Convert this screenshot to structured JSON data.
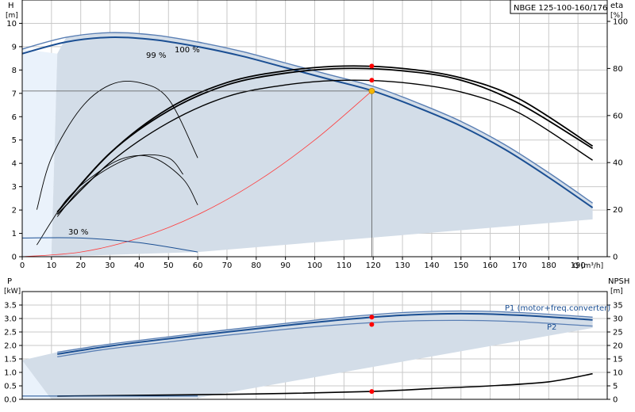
{
  "title": "NBGE 125-100-160/176",
  "colors": {
    "envelope": "#d3dde8",
    "envelope_light": "#eaf2fb",
    "curve_dark": "#1b4f93",
    "curve_light": "#5a7fb4",
    "system_curve": "#ff3b3b",
    "eta": "#000000",
    "duty_point": "#ff0000",
    "duty_point_top": "#f5b800",
    "grid": "#c9c9c9"
  },
  "chart_data": [
    {
      "id": "top",
      "type": "line",
      "xlabel": "Q [m³/h]",
      "ylabel_left": "H",
      "ylabel_left_unit": "[m]",
      "ylabel_right": "eta",
      "ylabel_right_unit": "[%]",
      "xlim": [
        0,
        200
      ],
      "ylim_left": [
        0,
        11
      ],
      "ylim_right": [
        0,
        100
      ],
      "x_ticks": [
        0,
        10,
        20,
        30,
        40,
        50,
        60,
        70,
        80,
        90,
        100,
        110,
        120,
        130,
        140,
        150,
        160,
        170,
        180,
        190
      ],
      "y_ticks_left": [
        0,
        1,
        2,
        3,
        4,
        5,
        6,
        7,
        8,
        9,
        10
      ],
      "y_ticks_right": [
        0,
        20,
        40,
        60,
        80,
        100
      ],
      "grid": true,
      "series": [
        {
          "name": "100 %",
          "axis": "left",
          "kind": "head",
          "x": [
            0,
            15,
            30,
            45,
            60,
            75,
            90,
            105,
            120,
            135,
            150,
            165,
            180,
            195
          ],
          "y": [
            8.9,
            9.4,
            9.6,
            9.5,
            9.2,
            8.8,
            8.3,
            7.8,
            7.3,
            6.6,
            5.8,
            4.8,
            3.6,
            2.3
          ]
        },
        {
          "name": "99 %",
          "axis": "left",
          "kind": "head",
          "x": [
            0,
            15,
            30,
            45,
            60,
            75,
            90,
            105,
            120,
            135,
            150,
            165,
            180,
            195
          ],
          "y": [
            8.7,
            9.2,
            9.4,
            9.3,
            9.0,
            8.6,
            8.1,
            7.6,
            7.1,
            6.4,
            5.6,
            4.6,
            3.4,
            2.1
          ]
        },
        {
          "name": "",
          "axis": "left",
          "kind": "system",
          "x": [
            0,
            20,
            40,
            60,
            80,
            100,
            119.5
          ],
          "y": [
            0,
            0.2,
            0.8,
            1.8,
            3.2,
            5.0,
            7.1
          ]
        },
        {
          "name": "",
          "axis": "right",
          "kind": "eta",
          "x": [
            12,
            30,
            50,
            70,
            90,
            110,
            130,
            150,
            170,
            195
          ],
          "y": [
            18,
            40,
            57,
            68,
            73,
            75,
            74,
            70,
            61,
            41
          ]
        },
        {
          "name": "",
          "axis": "right",
          "kind": "eta",
          "x": [
            12,
            30,
            50,
            70,
            90,
            110,
            130,
            150,
            170,
            195
          ],
          "y": [
            19,
            44,
            62,
            73,
            78,
            80,
            79,
            75,
            65,
            46
          ]
        },
        {
          "name": "",
          "axis": "right",
          "kind": "eta",
          "x": [
            12,
            30,
            50,
            70,
            90,
            110,
            130,
            150,
            170,
            195
          ],
          "y": [
            19,
            44,
            63,
            74,
            79,
            81,
            80,
            76,
            67,
            47
          ]
        },
        {
          "name": "",
          "axis": "right",
          "kind": "eta_thin",
          "x": [
            5,
            10,
            20,
            30,
            40,
            50,
            60
          ],
          "y": [
            20,
            42,
            63,
            73,
            74,
            67,
            42
          ]
        },
        {
          "name": "",
          "axis": "right",
          "kind": "eta_thin",
          "x": [
            5,
            15,
            25,
            35,
            45,
            55,
            60
          ],
          "y": [
            5,
            24,
            35,
            42,
            42,
            33,
            22
          ]
        },
        {
          "name": "",
          "axis": "right",
          "kind": "eta_thin",
          "x": [
            12,
            20,
            30,
            40,
            50,
            55
          ],
          "y": [
            17,
            29,
            38,
            43,
            42,
            35
          ]
        },
        {
          "name": "30 %",
          "axis": "left",
          "kind": "head_thin",
          "x": [
            0,
            20,
            40,
            60
          ],
          "y": [
            0.8,
            0.8,
            0.6,
            0.2
          ]
        }
      ],
      "envelope": {
        "x": [
          12,
          15,
          30,
          45,
          60,
          75,
          90,
          105,
          120,
          135,
          150,
          165,
          180,
          195,
          195,
          60,
          10
        ],
        "y": [
          8.7,
          9.4,
          9.6,
          9.5,
          9.2,
          8.8,
          8.3,
          7.8,
          7.3,
          6.6,
          5.8,
          4.8,
          3.6,
          2.3,
          1.6,
          0.2,
          0.0
        ]
      },
      "duty_point": {
        "Q": 119.5,
        "H": 7.1
      },
      "duty_markers_right": [
        81,
        75
      ],
      "labels": [
        "100 %",
        "99 %",
        "30 %"
      ]
    },
    {
      "id": "bottom",
      "type": "line",
      "ylabel_left": "P",
      "ylabel_left_unit": "[kW]",
      "ylabel_right": "NPSH",
      "ylabel_right_unit": "[m]",
      "xlim": [
        0,
        200
      ],
      "ylim_left": [
        0,
        4
      ],
      "ylim_right": [
        0,
        40
      ],
      "y_ticks_left": [
        0,
        0.5,
        1.0,
        1.5,
        2.0,
        2.5,
        3.0,
        3.5
      ],
      "y_ticks_right": [
        0,
        5,
        10,
        15,
        20,
        25,
        30,
        35
      ],
      "grid": true,
      "series": [
        {
          "name": "P1 (motor+freq.converter)",
          "axis": "left",
          "kind": "power",
          "x": [
            12,
            30,
            50,
            70,
            90,
            110,
            130,
            150,
            170,
            195
          ],
          "y": [
            1.75,
            2.05,
            2.32,
            2.58,
            2.82,
            3.05,
            3.22,
            3.28,
            3.22,
            3.05
          ]
        },
        {
          "name": "",
          "axis": "left",
          "kind": "power",
          "x": [
            12,
            30,
            50,
            70,
            90,
            110,
            130,
            150,
            170,
            195
          ],
          "y": [
            1.68,
            1.98,
            2.25,
            2.5,
            2.74,
            2.96,
            3.12,
            3.18,
            3.12,
            2.95
          ]
        },
        {
          "name": "P2",
          "axis": "left",
          "kind": "power",
          "x": [
            12,
            30,
            50,
            70,
            90,
            110,
            130,
            150,
            170,
            195
          ],
          "y": [
            1.58,
            1.88,
            2.13,
            2.38,
            2.6,
            2.78,
            2.9,
            2.93,
            2.88,
            2.72
          ]
        },
        {
          "name": "",
          "axis": "right",
          "kind": "npsh",
          "x": [
            12,
            40,
            80,
            119.5,
            140,
            160,
            180,
            195
          ],
          "y": [
            1.2,
            1.5,
            2.0,
            2.9,
            4.0,
            5.0,
            6.5,
            9.5
          ]
        }
      ],
      "envelope": {
        "x": [
          0,
          12,
          30,
          50,
          70,
          90,
          110,
          130,
          150,
          170,
          195,
          195,
          60,
          10
        ],
        "y": [
          1.45,
          1.75,
          2.05,
          2.32,
          2.58,
          2.82,
          3.05,
          3.22,
          3.28,
          3.22,
          3.05,
          2.65,
          0.05,
          0.0
        ]
      },
      "duty_markers_left": [
        3.05,
        2.78
      ],
      "duty_marker_npsh": 2.9,
      "labels": [
        "P1 (motor+freq.converter)",
        "P2"
      ]
    }
  ]
}
